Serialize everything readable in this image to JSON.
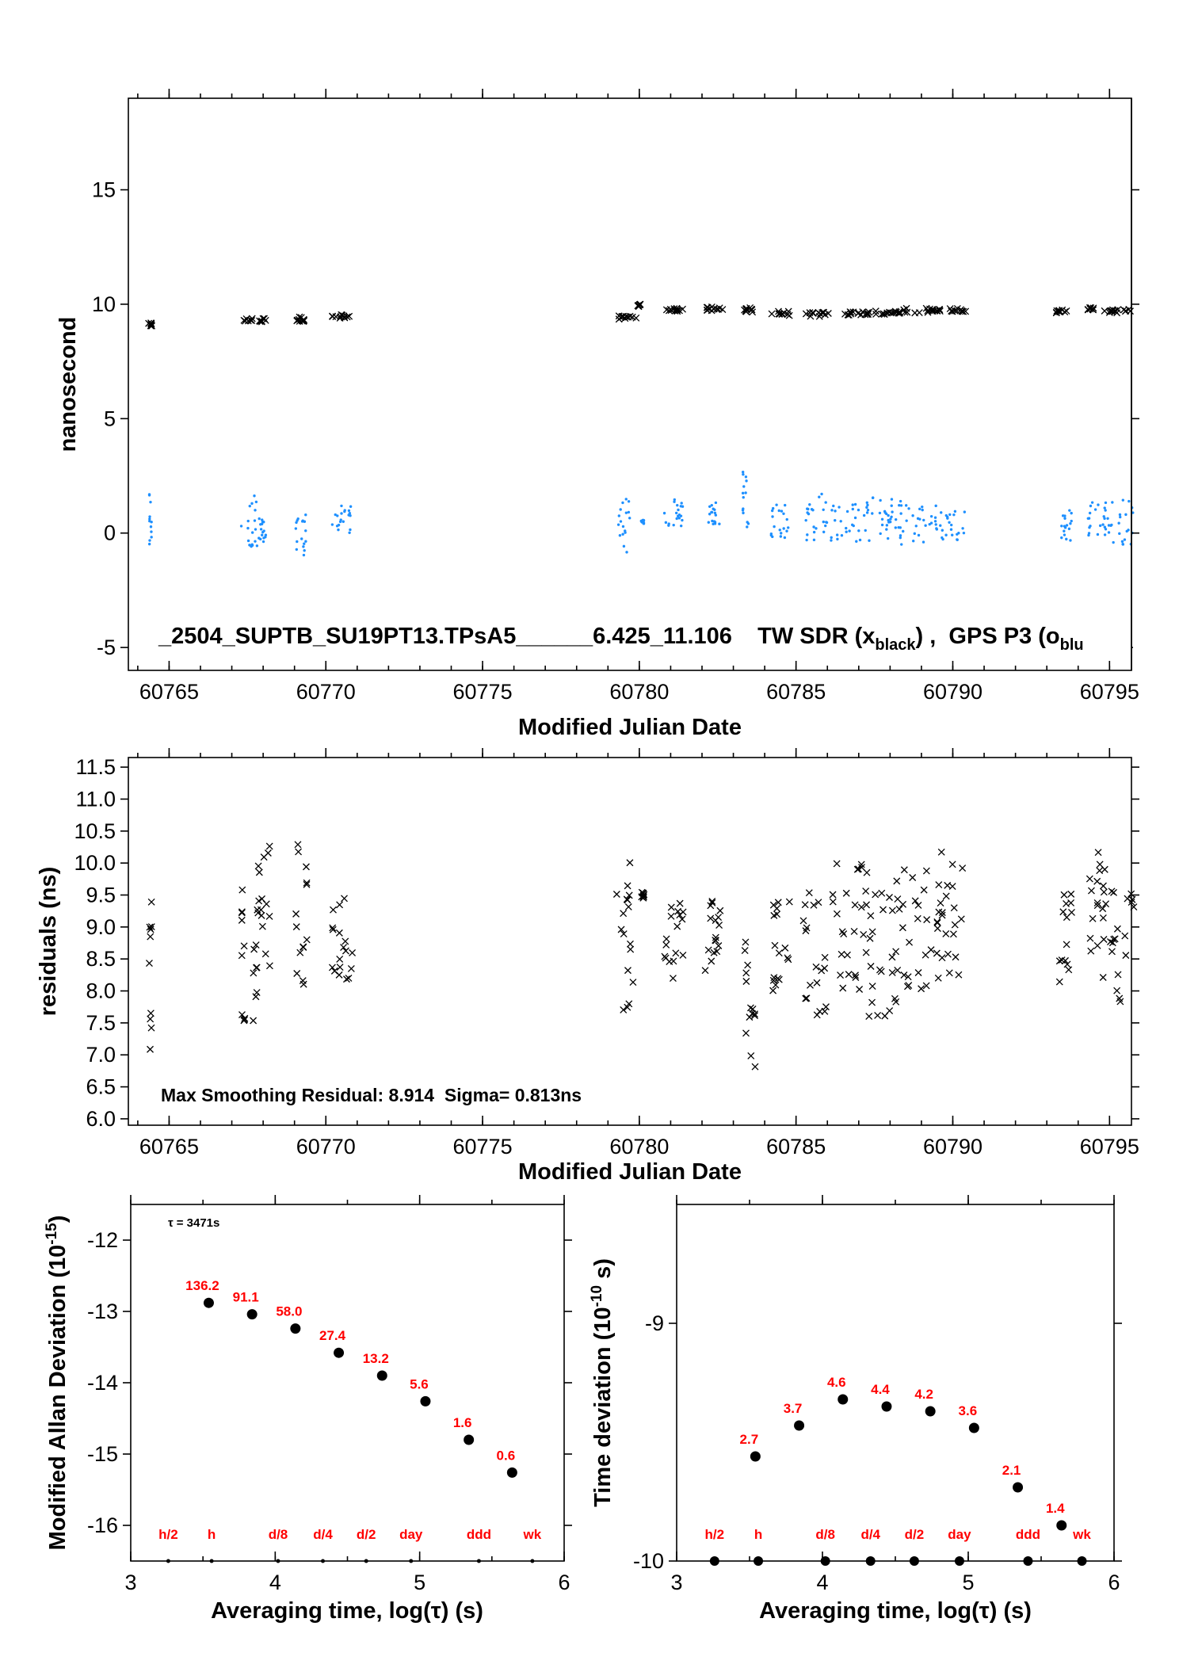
{
  "colors": {
    "tw": "#000000",
    "gps": "#1e90ff",
    "label_red": "#ff0000"
  },
  "chart_data": [
    {
      "id": "main",
      "type": "scatter",
      "title": "",
      "annotation": "_2504_SUPTB_SU19PT13.TPsA5______6.425_11.106    TW SDR (x",
      "legend_tw_sub": "black",
      "legend_mid": ") ,  GPS P3 (o",
      "legend_gps_sub": "blu",
      "xlabel": "Modified Julian Date",
      "ylabel": "nanosecond",
      "xlim": [
        60763.7,
        60795.7
      ],
      "ylim": [
        -6,
        19
      ],
      "xticks": [
        "60765",
        "60770",
        "60775",
        "60780",
        "60785",
        "60790",
        "60795"
      ],
      "yticks": [
        "-5",
        "0",
        "5",
        "10",
        "15"
      ],
      "series": [
        {
          "marker": "x",
          "clusters": [
            [
              60764.4,
              9.1,
              0.08,
              0.08
            ],
            [
              60767.7,
              9.3,
              0.4,
              0.1
            ],
            [
              60769.2,
              9.35,
              0.25,
              0.1
            ],
            [
              60770.5,
              9.45,
              0.3,
              0.1
            ],
            [
              60779.6,
              9.4,
              0.3,
              0.1
            ],
            [
              60780.0,
              9.95,
              0.05,
              0.05
            ],
            [
              60781.1,
              9.75,
              0.3,
              0.08
            ],
            [
              60782.4,
              9.8,
              0.3,
              0.08
            ],
            [
              60783.5,
              9.75,
              0.2,
              0.1
            ],
            [
              60784.5,
              9.6,
              0.3,
              0.1
            ],
            [
              60785.7,
              9.55,
              0.4,
              0.1
            ],
            [
              60787.0,
              9.6,
              0.5,
              0.08
            ],
            [
              60788.0,
              9.62,
              0.5,
              0.08
            ],
            [
              60789.0,
              9.72,
              0.6,
              0.1
            ],
            [
              60790.2,
              9.75,
              0.3,
              0.08
            ],
            [
              60793.5,
              9.68,
              0.2,
              0.08
            ],
            [
              60794.4,
              9.8,
              0.1,
              0.05
            ],
            [
              60795.2,
              9.7,
              0.5,
              0.08
            ]
          ]
        },
        {
          "marker": "o",
          "clusters": [
            [
              60764.4,
              0.8,
              0.04,
              1.3
            ],
            [
              60767.6,
              0.6,
              0.3,
              1.2
            ],
            [
              60768.0,
              0.1,
              0.1,
              0.5
            ],
            [
              60769.2,
              -0.1,
              0.2,
              0.9
            ],
            [
              60770.5,
              0.6,
              0.3,
              0.6
            ],
            [
              60779.5,
              0.3,
              0.2,
              1.3
            ],
            [
              60780.1,
              0.5,
              0.05,
              0.1
            ],
            [
              60781.1,
              0.9,
              0.3,
              0.6
            ],
            [
              60782.4,
              0.8,
              0.2,
              0.6
            ],
            [
              60783.4,
              1.5,
              0.1,
              1.4
            ],
            [
              60784.5,
              0.6,
              0.3,
              0.8
            ],
            [
              60785.6,
              0.7,
              0.4,
              1.1
            ],
            [
              60786.7,
              0.5,
              0.6,
              0.9
            ],
            [
              60787.8,
              0.6,
              0.6,
              1.0
            ],
            [
              60788.8,
              0.5,
              0.8,
              1.0
            ],
            [
              60790.0,
              0.3,
              0.4,
              0.7
            ],
            [
              60793.6,
              0.4,
              0.2,
              0.8
            ],
            [
              60794.6,
              0.6,
              0.3,
              0.8
            ],
            [
              60795.3,
              0.5,
              0.5,
              1.0
            ]
          ]
        }
      ]
    },
    {
      "id": "residuals",
      "type": "scatter",
      "title": "",
      "annotation": "Max Smoothing Residual: 8.914  Sigma= 0.813ns",
      "xlabel": "Modified Julian Date",
      "ylabel": "residuals (ns)",
      "xlim": [
        60763.7,
        60795.7
      ],
      "ylim": [
        5.9,
        11.65
      ],
      "xticks": [
        "60765",
        "60770",
        "60775",
        "60780",
        "60785",
        "60790",
        "60795"
      ],
      "yticks": [
        "6.0",
        "6.5",
        "7.0",
        "7.5",
        "8.0",
        "8.5",
        "9.0",
        "9.5",
        "10.0",
        "10.5",
        "11.0",
        "11.5"
      ],
      "series": [
        {
          "marker": "x",
          "clusters": [
            [
              60764.4,
              8.3,
              0.05,
              1.3
            ],
            [
              60767.6,
              8.6,
              0.3,
              1.1
            ],
            [
              60768.0,
              9.3,
              0.3,
              1.0
            ],
            [
              60769.2,
              9.1,
              0.2,
              1.2
            ],
            [
              60770.5,
              8.8,
              0.35,
              0.7
            ],
            [
              60779.5,
              9.0,
              0.3,
              1.3
            ],
            [
              60780.1,
              9.5,
              0.05,
              0.05
            ],
            [
              60781.1,
              8.8,
              0.3,
              0.7
            ],
            [
              60782.4,
              8.9,
              0.3,
              0.6
            ],
            [
              60783.5,
              8.0,
              0.2,
              1.2
            ],
            [
              60784.5,
              8.8,
              0.3,
              0.8
            ],
            [
              60785.6,
              8.6,
              0.4,
              1.0
            ],
            [
              60786.7,
              9.0,
              0.6,
              1.0
            ],
            [
              60787.8,
              8.6,
              0.6,
              1.0
            ],
            [
              60788.8,
              9.0,
              0.8,
              1.0
            ],
            [
              60790.0,
              9.2,
              0.4,
              1.0
            ],
            [
              60793.6,
              8.8,
              0.2,
              0.8
            ],
            [
              60794.6,
              9.2,
              0.3,
              1.1
            ],
            [
              60795.3,
              8.8,
              0.5,
              1.0
            ]
          ]
        }
      ]
    },
    {
      "id": "mdev",
      "type": "scatter",
      "title": "",
      "annotation": "= 3471s",
      "annotation_symbol": "τ",
      "xlabel": "Averaging time, log(τ) (s)",
      "ylabel_main": "Modified Allan Deviation (10",
      "ylabel_sup": "-15",
      "ylabel_end": ")",
      "xlim": [
        3,
        6
      ],
      "ylim": [
        -16.5,
        -11.5
      ],
      "xticks": [
        "3",
        "4",
        "5",
        "6"
      ],
      "yticks": [
        "-16",
        "-15",
        "-14",
        "-13",
        "-12"
      ],
      "x": [
        3.54,
        3.84,
        4.14,
        4.44,
        4.74,
        5.04,
        5.34,
        5.64
      ],
      "y": [
        -12.88,
        -13.04,
        -13.24,
        -13.58,
        -13.9,
        -14.26,
        -14.8,
        -15.26
      ],
      "labels": [
        "136.2",
        "91.1",
        "58.0",
        "27.4",
        "13.2",
        "5.6",
        "1.6",
        "0.6"
      ],
      "ref_x": [
        3.26,
        3.56,
        4.02,
        4.33,
        4.63,
        4.94,
        5.41,
        5.78
      ],
      "ref_labels": [
        "h/2",
        "h",
        "d/8",
        "d/4",
        "d/2",
        "day",
        "ddd",
        "wk"
      ]
    },
    {
      "id": "tdev",
      "type": "scatter",
      "title": "",
      "xlabel": "Averaging time, log(τ) (s)",
      "ylabel_main": "Time deviation (10",
      "ylabel_sup": "-10",
      "ylabel_end": " s)",
      "xlim": [
        3,
        6
      ],
      "ylim": [
        -10,
        -8.5
      ],
      "xticks": [
        "3",
        "4",
        "5",
        "6"
      ],
      "yticks": [
        "-10",
        "-9"
      ],
      "x": [
        3.54,
        3.84,
        4.14,
        4.44,
        4.74,
        5.04,
        5.34,
        5.64
      ],
      "y": [
        -9.56,
        -9.43,
        -9.32,
        -9.35,
        -9.37,
        -9.44,
        -9.69,
        -9.85
      ],
      "labels": [
        "2.7",
        "3.7",
        "4.6",
        "4.4",
        "4.2",
        "3.6",
        "2.1",
        "1.4"
      ],
      "ref_x": [
        3.26,
        3.56,
        4.02,
        4.33,
        4.63,
        4.94,
        5.41,
        5.78
      ],
      "ref_labels": [
        "h/2",
        "h",
        "d/8",
        "d/4",
        "d/2",
        "day",
        "ddd",
        "wk"
      ]
    }
  ]
}
